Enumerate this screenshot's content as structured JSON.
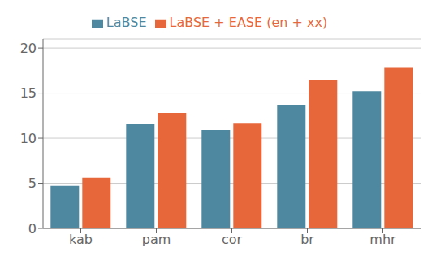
{
  "chart_data": {
    "type": "bar",
    "categories": [
      "kab",
      "pam",
      "cor",
      "br",
      "mhr"
    ],
    "series": [
      {
        "name": "LaBSE",
        "color": "#4e88a0",
        "values": [
          4.7,
          11.6,
          10.9,
          13.7,
          15.2
        ]
      },
      {
        "name": "LaBSE + EASE (en + xx)",
        "color": "#e8673a",
        "values": [
          5.6,
          12.8,
          11.7,
          16.5,
          17.8
        ]
      }
    ],
    "ylim": [
      0,
      21
    ],
    "yticks": [
      0,
      5,
      10,
      15,
      20
    ],
    "grid": true,
    "legend": "top"
  }
}
